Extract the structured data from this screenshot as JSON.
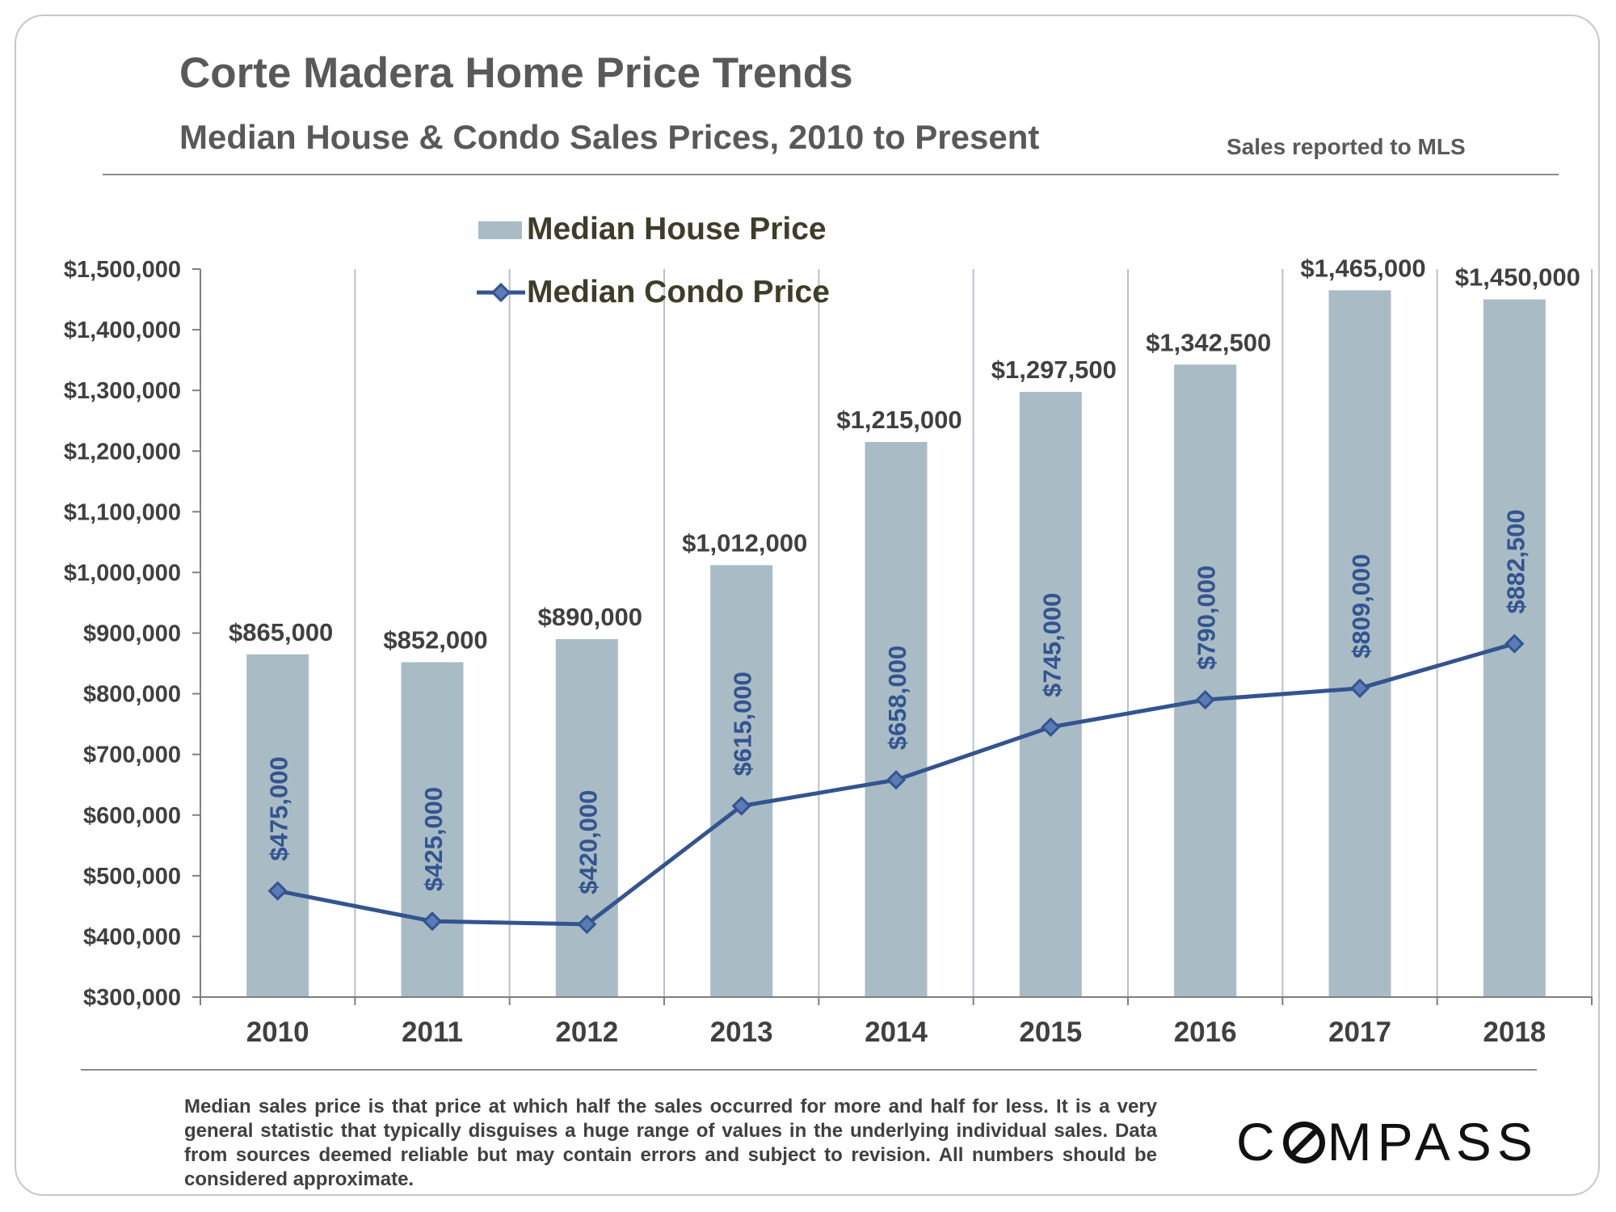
{
  "header": {
    "title": "Corte Madera Home Price Trends",
    "subtitle": "Median House & Condo Sales Prices, 2010 to Present",
    "source_note": "Sales reported to MLS"
  },
  "footer": {
    "note": "Median sales price is that price at which half the sales occurred for more and half for less. It is a very general statistic that typically disguises a huge range of values in the underlying individual sales. Data from sources deemed reliable but may contain errors and subject to revision. All numbers should be considered approximate.",
    "logo": "COMPASS",
    "logo_left": "C",
    "logo_right": "MPASS"
  },
  "colors": {
    "bar": "#a9bcc5",
    "line": "#33548f",
    "text": "#404040",
    "legend_text": "#3d3d29",
    "grid": "#b5c3c8"
  },
  "chart_data": {
    "type": "bar",
    "title": "Corte Madera Home Price Trends",
    "xlabel": "",
    "ylabel": "",
    "categories": [
      "2010",
      "2011",
      "2012",
      "2013",
      "2014",
      "2015",
      "2016",
      "2017",
      "2018"
    ],
    "ylim": [
      300000,
      1500000
    ],
    "yticks": [
      300000,
      400000,
      500000,
      600000,
      700000,
      800000,
      900000,
      1000000,
      1100000,
      1200000,
      1300000,
      1400000,
      1500000
    ],
    "ytick_labels": [
      "$300,000",
      "$400,000",
      "$500,000",
      "$600,000",
      "$700,000",
      "$800,000",
      "$900,000",
      "$1,000,000",
      "$1,100,000",
      "$1,200,000",
      "$1,300,000",
      "$1,400,000",
      "$1,500,000"
    ],
    "legend_position": "top-center",
    "series": [
      {
        "name": "Median House Price",
        "type": "bar",
        "values": [
          865000,
          852000,
          890000,
          1012000,
          1215000,
          1297500,
          1342500,
          1465000,
          1450000
        ],
        "labels": [
          "$865,000",
          "$852,000",
          "$890,000",
          "$1,012,000",
          "$1,215,000",
          "$1,297,500",
          "$1,342,500",
          "$1,465,000",
          "$1,450,000"
        ]
      },
      {
        "name": "Median Condo Price",
        "type": "line",
        "marker": "diamond",
        "values": [
          475000,
          425000,
          420000,
          615000,
          658000,
          745000,
          790000,
          809000,
          882500
        ],
        "labels": [
          "$475,000",
          "$425,000",
          "$420,000",
          "$615,000",
          "$658,000",
          "$745,000",
          "$790,000",
          "$809,000",
          "$882,500"
        ]
      }
    ]
  }
}
